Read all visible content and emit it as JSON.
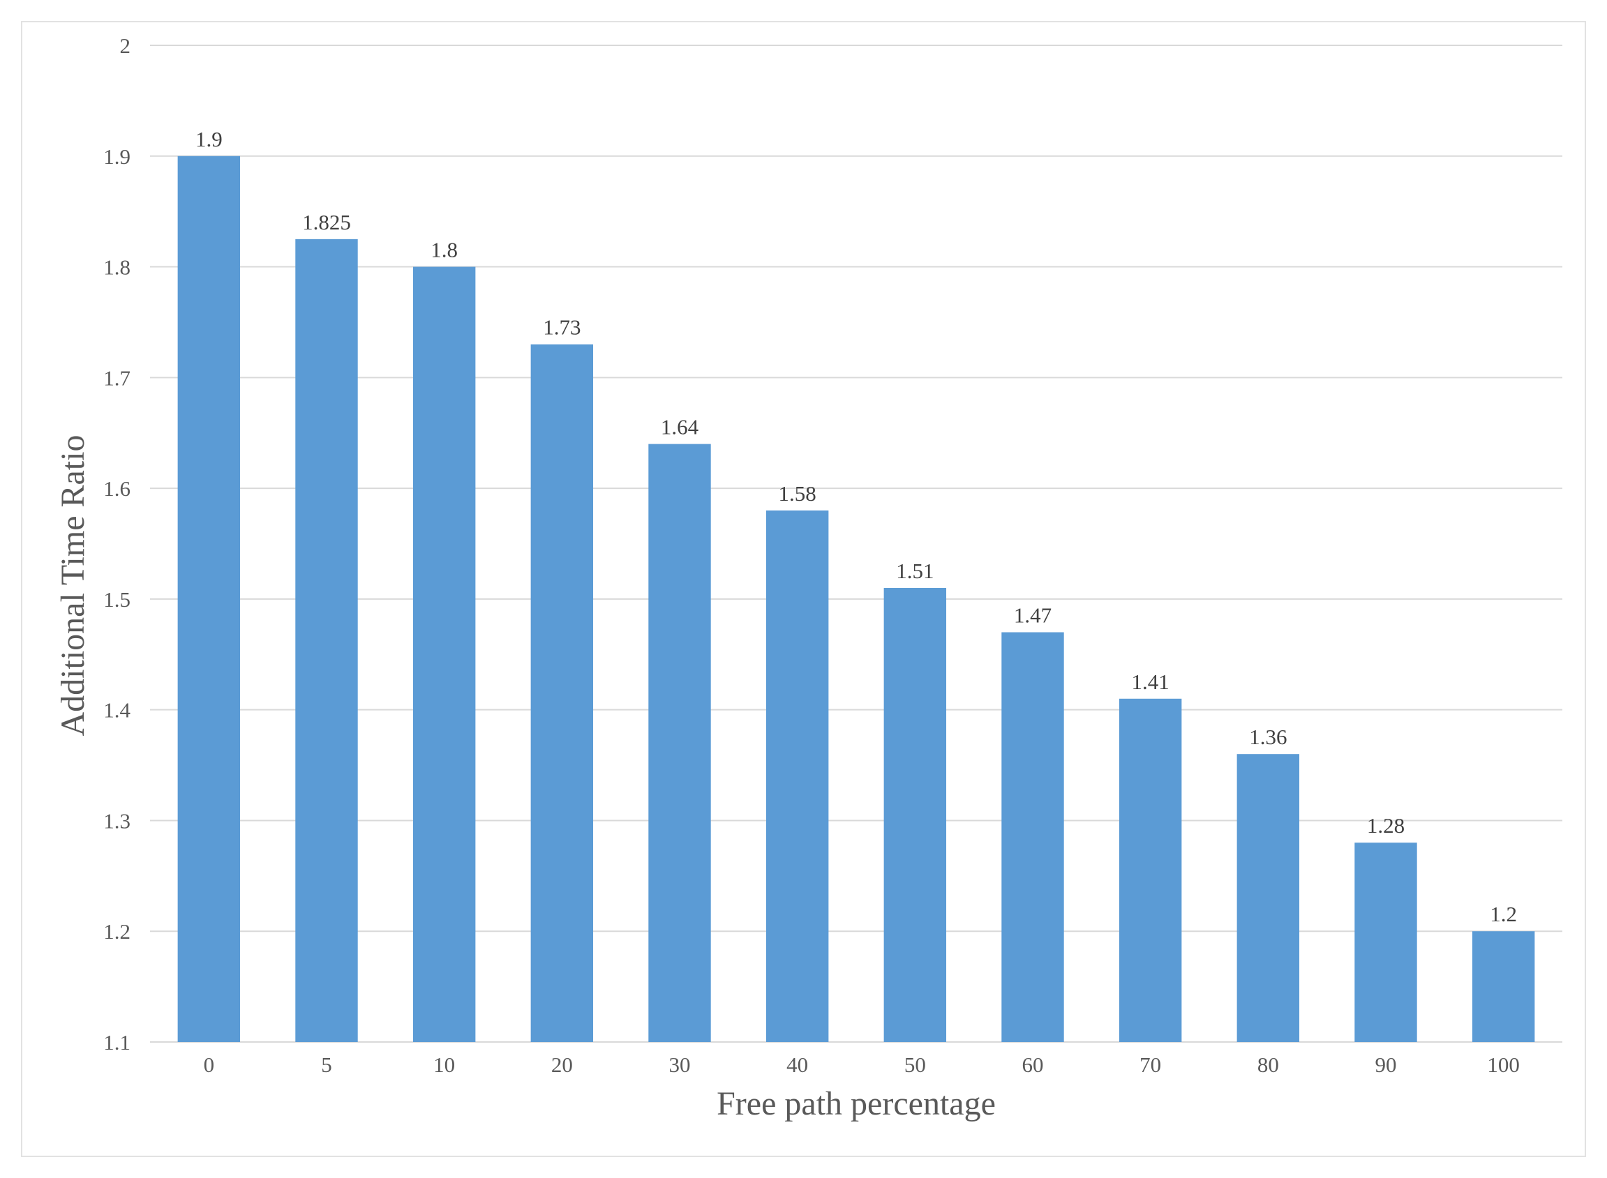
{
  "chart_data": {
    "type": "bar",
    "title": "",
    "xlabel": "Free path percentage",
    "ylabel": "Additional Time Ratio",
    "categories": [
      "0",
      "5",
      "10",
      "20",
      "30",
      "40",
      "50",
      "60",
      "70",
      "80",
      "90",
      "100"
    ],
    "values": [
      1.9,
      1.825,
      1.8,
      1.73,
      1.64,
      1.58,
      1.51,
      1.47,
      1.41,
      1.36,
      1.28,
      1.2
    ],
    "data_labels": [
      "1.9",
      "1.825",
      "1.8",
      "1.73",
      "1.64",
      "1.58",
      "1.51",
      "1.47",
      "1.41",
      "1.36",
      "1.28",
      "1.2"
    ],
    "ylim": [
      1.1,
      2
    ],
    "yticks": [
      "1.1",
      "1.2",
      "1.3",
      "1.4",
      "1.5",
      "1.6",
      "1.7",
      "1.8",
      "1.9",
      "2"
    ],
    "grid": true,
    "legend": "none",
    "bar_color": "#5b9bd5"
  }
}
